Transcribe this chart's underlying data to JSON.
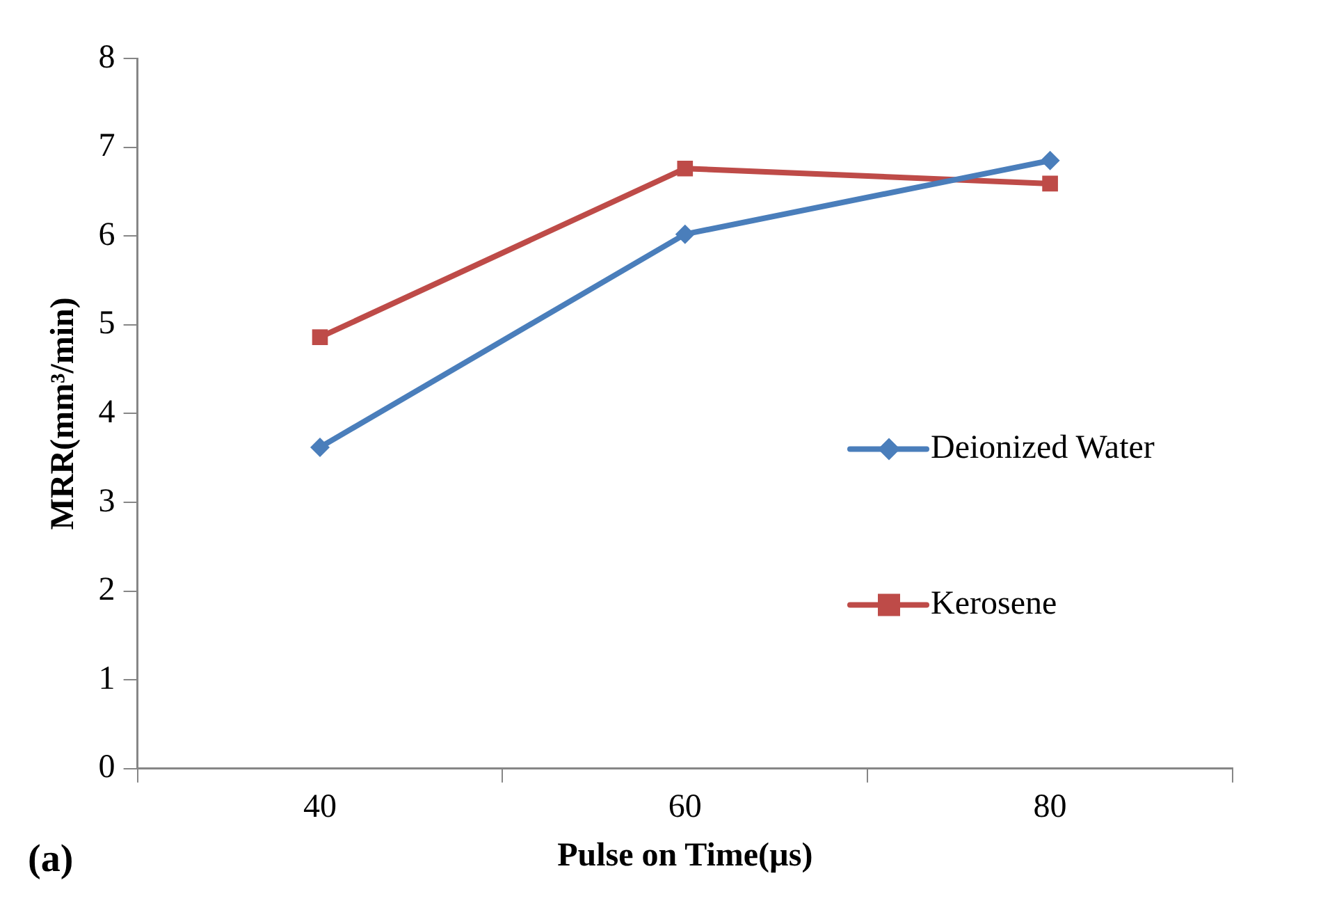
{
  "chart_data": {
    "type": "line",
    "xlabel": "Pulse on Time(µs)",
    "ylabel": "MRR(mm³/min)",
    "categories": [
      "40",
      "60",
      "80"
    ],
    "series": [
      {
        "name": "Deionized Water",
        "color": "#4a7ebb",
        "marker": "diamond",
        "values": [
          3.62,
          6.02,
          6.85
        ]
      },
      {
        "name": "Kerosene",
        "color": "#be4b48",
        "marker": "square",
        "values": [
          4.86,
          6.76,
          6.59
        ]
      }
    ],
    "ylim": [
      0,
      8
    ],
    "yticks": [
      0,
      1,
      2,
      3,
      4,
      5,
      6,
      7,
      8
    ],
    "grid": false,
    "legend": "right",
    "line_style": "solid",
    "annotations": [
      "(a)"
    ]
  }
}
